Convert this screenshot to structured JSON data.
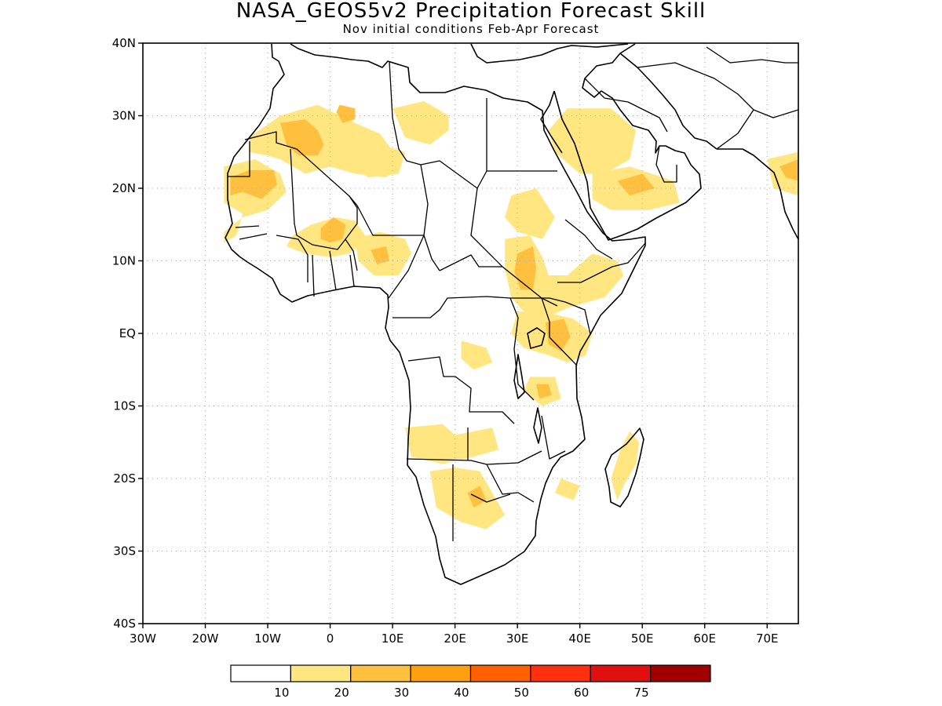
{
  "title": "NASA_GEOS5v2 Precipitation Forecast Skill",
  "subtitle": "Nov initial conditions  Feb-Apr Forecast",
  "map": {
    "lon_range": [
      -30,
      75
    ],
    "lat_range": [
      -40,
      40
    ],
    "lat_ticks": [
      {
        "value": 40,
        "label": "40N"
      },
      {
        "value": 30,
        "label": "30N"
      },
      {
        "value": 20,
        "label": "20N"
      },
      {
        "value": 10,
        "label": "10N"
      },
      {
        "value": 0,
        "label": "EQ"
      },
      {
        "value": -10,
        "label": "10S"
      },
      {
        "value": -20,
        "label": "20S"
      },
      {
        "value": -30,
        "label": "30S"
      },
      {
        "value": -40,
        "label": "40S"
      }
    ],
    "lon_ticks": [
      {
        "value": -30,
        "label": "30W"
      },
      {
        "value": -20,
        "label": "20W"
      },
      {
        "value": -10,
        "label": "10W"
      },
      {
        "value": 0,
        "label": "0"
      },
      {
        "value": 10,
        "label": "10E"
      },
      {
        "value": 20,
        "label": "20E"
      },
      {
        "value": 30,
        "label": "30E"
      },
      {
        "value": 40,
        "label": "40E"
      },
      {
        "value": 50,
        "label": "50E"
      },
      {
        "value": 60,
        "label": "60E"
      },
      {
        "value": 70,
        "label": "70E"
      }
    ],
    "grid": "dotted",
    "skill_regions": [
      {
        "level": 10,
        "lonlat": [
          [
            -13,
            27
          ],
          [
            -8,
            30
          ],
          [
            -2,
            31.5
          ],
          [
            4,
            29
          ],
          [
            8,
            27.5
          ],
          [
            11,
            24
          ],
          [
            9,
            21.5
          ],
          [
            4,
            22
          ],
          [
            0,
            23
          ],
          [
            -4,
            22
          ],
          [
            -8,
            24
          ],
          [
            -10,
            24.5
          ],
          [
            -13,
            25
          ]
        ]
      },
      {
        "level": 20,
        "lonlat": [
          [
            -8,
            29
          ],
          [
            -4,
            29.5
          ],
          [
            -2,
            28
          ],
          [
            -1,
            26
          ],
          [
            -2,
            24.5
          ],
          [
            -5,
            24.5
          ],
          [
            -7,
            26
          ]
        ]
      },
      {
        "level": 20,
        "lonlat": [
          [
            1.5,
            31.5
          ],
          [
            4,
            31
          ],
          [
            4,
            29.5
          ],
          [
            2,
            29
          ],
          [
            1,
            30.5
          ]
        ]
      },
      {
        "level": 10,
        "lonlat": [
          [
            -17,
            23
          ],
          [
            -12,
            24
          ],
          [
            -8,
            22
          ],
          [
            -7,
            19.5
          ],
          [
            -10,
            17
          ],
          [
            -14,
            16
          ],
          [
            -17,
            14
          ],
          [
            -17,
            12.5
          ],
          [
            -15,
            13.5
          ],
          [
            -14,
            16.5
          ],
          [
            -17,
            18
          ]
        ]
      },
      {
        "level": 20,
        "lonlat": [
          [
            -16,
            21.5
          ],
          [
            -13,
            22.5
          ],
          [
            -9,
            22.5
          ],
          [
            -8.5,
            20.5
          ],
          [
            -11,
            18.5
          ],
          [
            -14,
            19.5
          ],
          [
            -16,
            19
          ]
        ]
      },
      {
        "level": 10,
        "lonlat": [
          [
            -6,
            13.5
          ],
          [
            -3,
            15
          ],
          [
            1,
            16
          ],
          [
            4,
            15.5
          ],
          [
            6,
            13
          ],
          [
            3,
            11
          ],
          [
            0,
            10.5
          ],
          [
            -4,
            11
          ],
          [
            -7,
            12
          ]
        ]
      },
      {
        "level": 20,
        "lonlat": [
          [
            -1.5,
            14.5
          ],
          [
            0.5,
            16
          ],
          [
            2.5,
            15
          ],
          [
            2,
            13
          ],
          [
            0,
            12.5
          ],
          [
            -1.5,
            13
          ]
        ]
      },
      {
        "level": 10,
        "lonlat": [
          [
            4,
            13
          ],
          [
            8,
            14
          ],
          [
            12,
            13
          ],
          [
            13,
            11
          ],
          [
            11,
            8
          ],
          [
            7,
            8
          ],
          [
            4.5,
            10
          ]
        ]
      },
      {
        "level": 20,
        "lonlat": [
          [
            6.5,
            11.5
          ],
          [
            9,
            12
          ],
          [
            9.5,
            10
          ],
          [
            7.5,
            9.5
          ]
        ]
      },
      {
        "level": 10,
        "lonlat": [
          [
            10,
            31
          ],
          [
            15,
            32
          ],
          [
            19,
            30
          ],
          [
            19,
            28
          ],
          [
            16,
            26
          ],
          [
            12,
            27
          ]
        ]
      },
      {
        "level": 10,
        "lonlat": [
          [
            4,
            24
          ],
          [
            8,
            26
          ],
          [
            12,
            25
          ],
          [
            11,
            22
          ],
          [
            6,
            21.5
          ]
        ]
      },
      {
        "level": 10,
        "lonlat": [
          [
            29,
            19
          ],
          [
            33,
            20
          ],
          [
            36,
            16
          ],
          [
            34,
            13
          ],
          [
            30,
            14
          ],
          [
            28,
            16
          ]
        ]
      },
      {
        "level": 10,
        "lonlat": [
          [
            28,
            13
          ],
          [
            32,
            13.5
          ],
          [
            34,
            10.5
          ],
          [
            35,
            8
          ],
          [
            38,
            8
          ],
          [
            42,
            11
          ],
          [
            46,
            10
          ],
          [
            47,
            8
          ],
          [
            44,
            5
          ],
          [
            38,
            3.5
          ],
          [
            34,
            2
          ],
          [
            31,
            3
          ],
          [
            29,
            5
          ],
          [
            28,
            9
          ]
        ]
      },
      {
        "level": 20,
        "lonlat": [
          [
            30,
            11
          ],
          [
            32.5,
            12
          ],
          [
            33,
            9
          ],
          [
            32.5,
            6
          ],
          [
            30.5,
            6
          ],
          [
            29.5,
            8.5
          ]
        ]
      },
      {
        "level": 10,
        "lonlat": [
          [
            30,
            3
          ],
          [
            34,
            3
          ],
          [
            39,
            2
          ],
          [
            42,
            0
          ],
          [
            41,
            -3
          ],
          [
            38,
            -4
          ],
          [
            35,
            -3
          ],
          [
            31,
            -2
          ],
          [
            29,
            0
          ]
        ]
      },
      {
        "level": 20,
        "lonlat": [
          [
            34.5,
            1.5
          ],
          [
            37.5,
            2
          ],
          [
            38.5,
            -0.5
          ],
          [
            37,
            -2.5
          ],
          [
            35,
            -1.5
          ]
        ]
      },
      {
        "level": 10,
        "lonlat": [
          [
            32,
            -6
          ],
          [
            36,
            -6
          ],
          [
            37,
            -9
          ],
          [
            34,
            -10
          ],
          [
            31,
            -8
          ]
        ]
      },
      {
        "level": 20,
        "lonlat": [
          [
            33,
            -7
          ],
          [
            35,
            -7
          ],
          [
            35.5,
            -8.5
          ],
          [
            33.5,
            -9
          ]
        ]
      },
      {
        "level": 10,
        "lonlat": [
          [
            21,
            -1
          ],
          [
            25,
            -2
          ],
          [
            26,
            -4
          ],
          [
            23,
            -5
          ],
          [
            21,
            -3.5
          ]
        ]
      },
      {
        "level": 10,
        "lonlat": [
          [
            12,
            -13
          ],
          [
            18,
            -12.5
          ],
          [
            20,
            -14
          ],
          [
            26,
            -13
          ],
          [
            27,
            -16
          ],
          [
            23,
            -17
          ],
          [
            18,
            -18
          ],
          [
            13,
            -17
          ]
        ]
      },
      {
        "level": 10,
        "lonlat": [
          [
            16,
            -19
          ],
          [
            20,
            -18.5
          ],
          [
            24,
            -19
          ],
          [
            26,
            -22
          ],
          [
            28,
            -25
          ],
          [
            25,
            -27
          ],
          [
            21,
            -26
          ],
          [
            17,
            -24
          ]
        ]
      },
      {
        "level": 20,
        "lonlat": [
          [
            22,
            -22
          ],
          [
            24,
            -21
          ],
          [
            25,
            -23
          ],
          [
            23,
            -24
          ]
        ]
      },
      {
        "level": 10,
        "lonlat": [
          [
            37,
            -20
          ],
          [
            40,
            -21
          ],
          [
            39,
            -23
          ],
          [
            36,
            -22
          ]
        ]
      },
      {
        "level": 10,
        "lonlat": [
          [
            48,
            -13.5
          ],
          [
            49.5,
            -15
          ],
          [
            49,
            -18
          ],
          [
            47,
            -21
          ],
          [
            46,
            -23
          ],
          [
            45,
            -20
          ],
          [
            46.5,
            -16
          ]
        ]
      },
      {
        "level": 10,
        "lonlat": [
          [
            35,
            28
          ],
          [
            38,
            31
          ],
          [
            45,
            31
          ],
          [
            49,
            28
          ],
          [
            48,
            24
          ],
          [
            44,
            22
          ],
          [
            40,
            22
          ],
          [
            36,
            25
          ]
        ]
      },
      {
        "level": 10,
        "lonlat": [
          [
            42,
            22
          ],
          [
            48,
            23
          ],
          [
            55,
            21
          ],
          [
            56,
            18
          ],
          [
            51,
            17
          ],
          [
            45,
            17
          ],
          [
            42,
            18.5
          ]
        ]
      },
      {
        "level": 20,
        "lonlat": [
          [
            46,
            21
          ],
          [
            50,
            22
          ],
          [
            52,
            20
          ],
          [
            48,
            19
          ]
        ]
      },
      {
        "level": 10,
        "lonlat": [
          [
            70,
            24
          ],
          [
            75,
            25
          ],
          [
            75,
            19
          ],
          [
            71,
            20
          ]
        ]
      },
      {
        "level": 20,
        "lonlat": [
          [
            72,
            23
          ],
          [
            75,
            24
          ],
          [
            75,
            21
          ],
          [
            73,
            21.5
          ]
        ]
      }
    ]
  },
  "colorbar": {
    "tick_labels": [
      "10",
      "20",
      "30",
      "40",
      "50",
      "60",
      "75"
    ],
    "colors": [
      "#ffffff",
      "#ffe680",
      "#ffc040",
      "#ffa010",
      "#ff6000",
      "#ff3010",
      "#e01010",
      "#a00000"
    ]
  },
  "colors": {
    "frame": "#000000",
    "coast": "#000000",
    "grid": "#aaaaaa"
  }
}
